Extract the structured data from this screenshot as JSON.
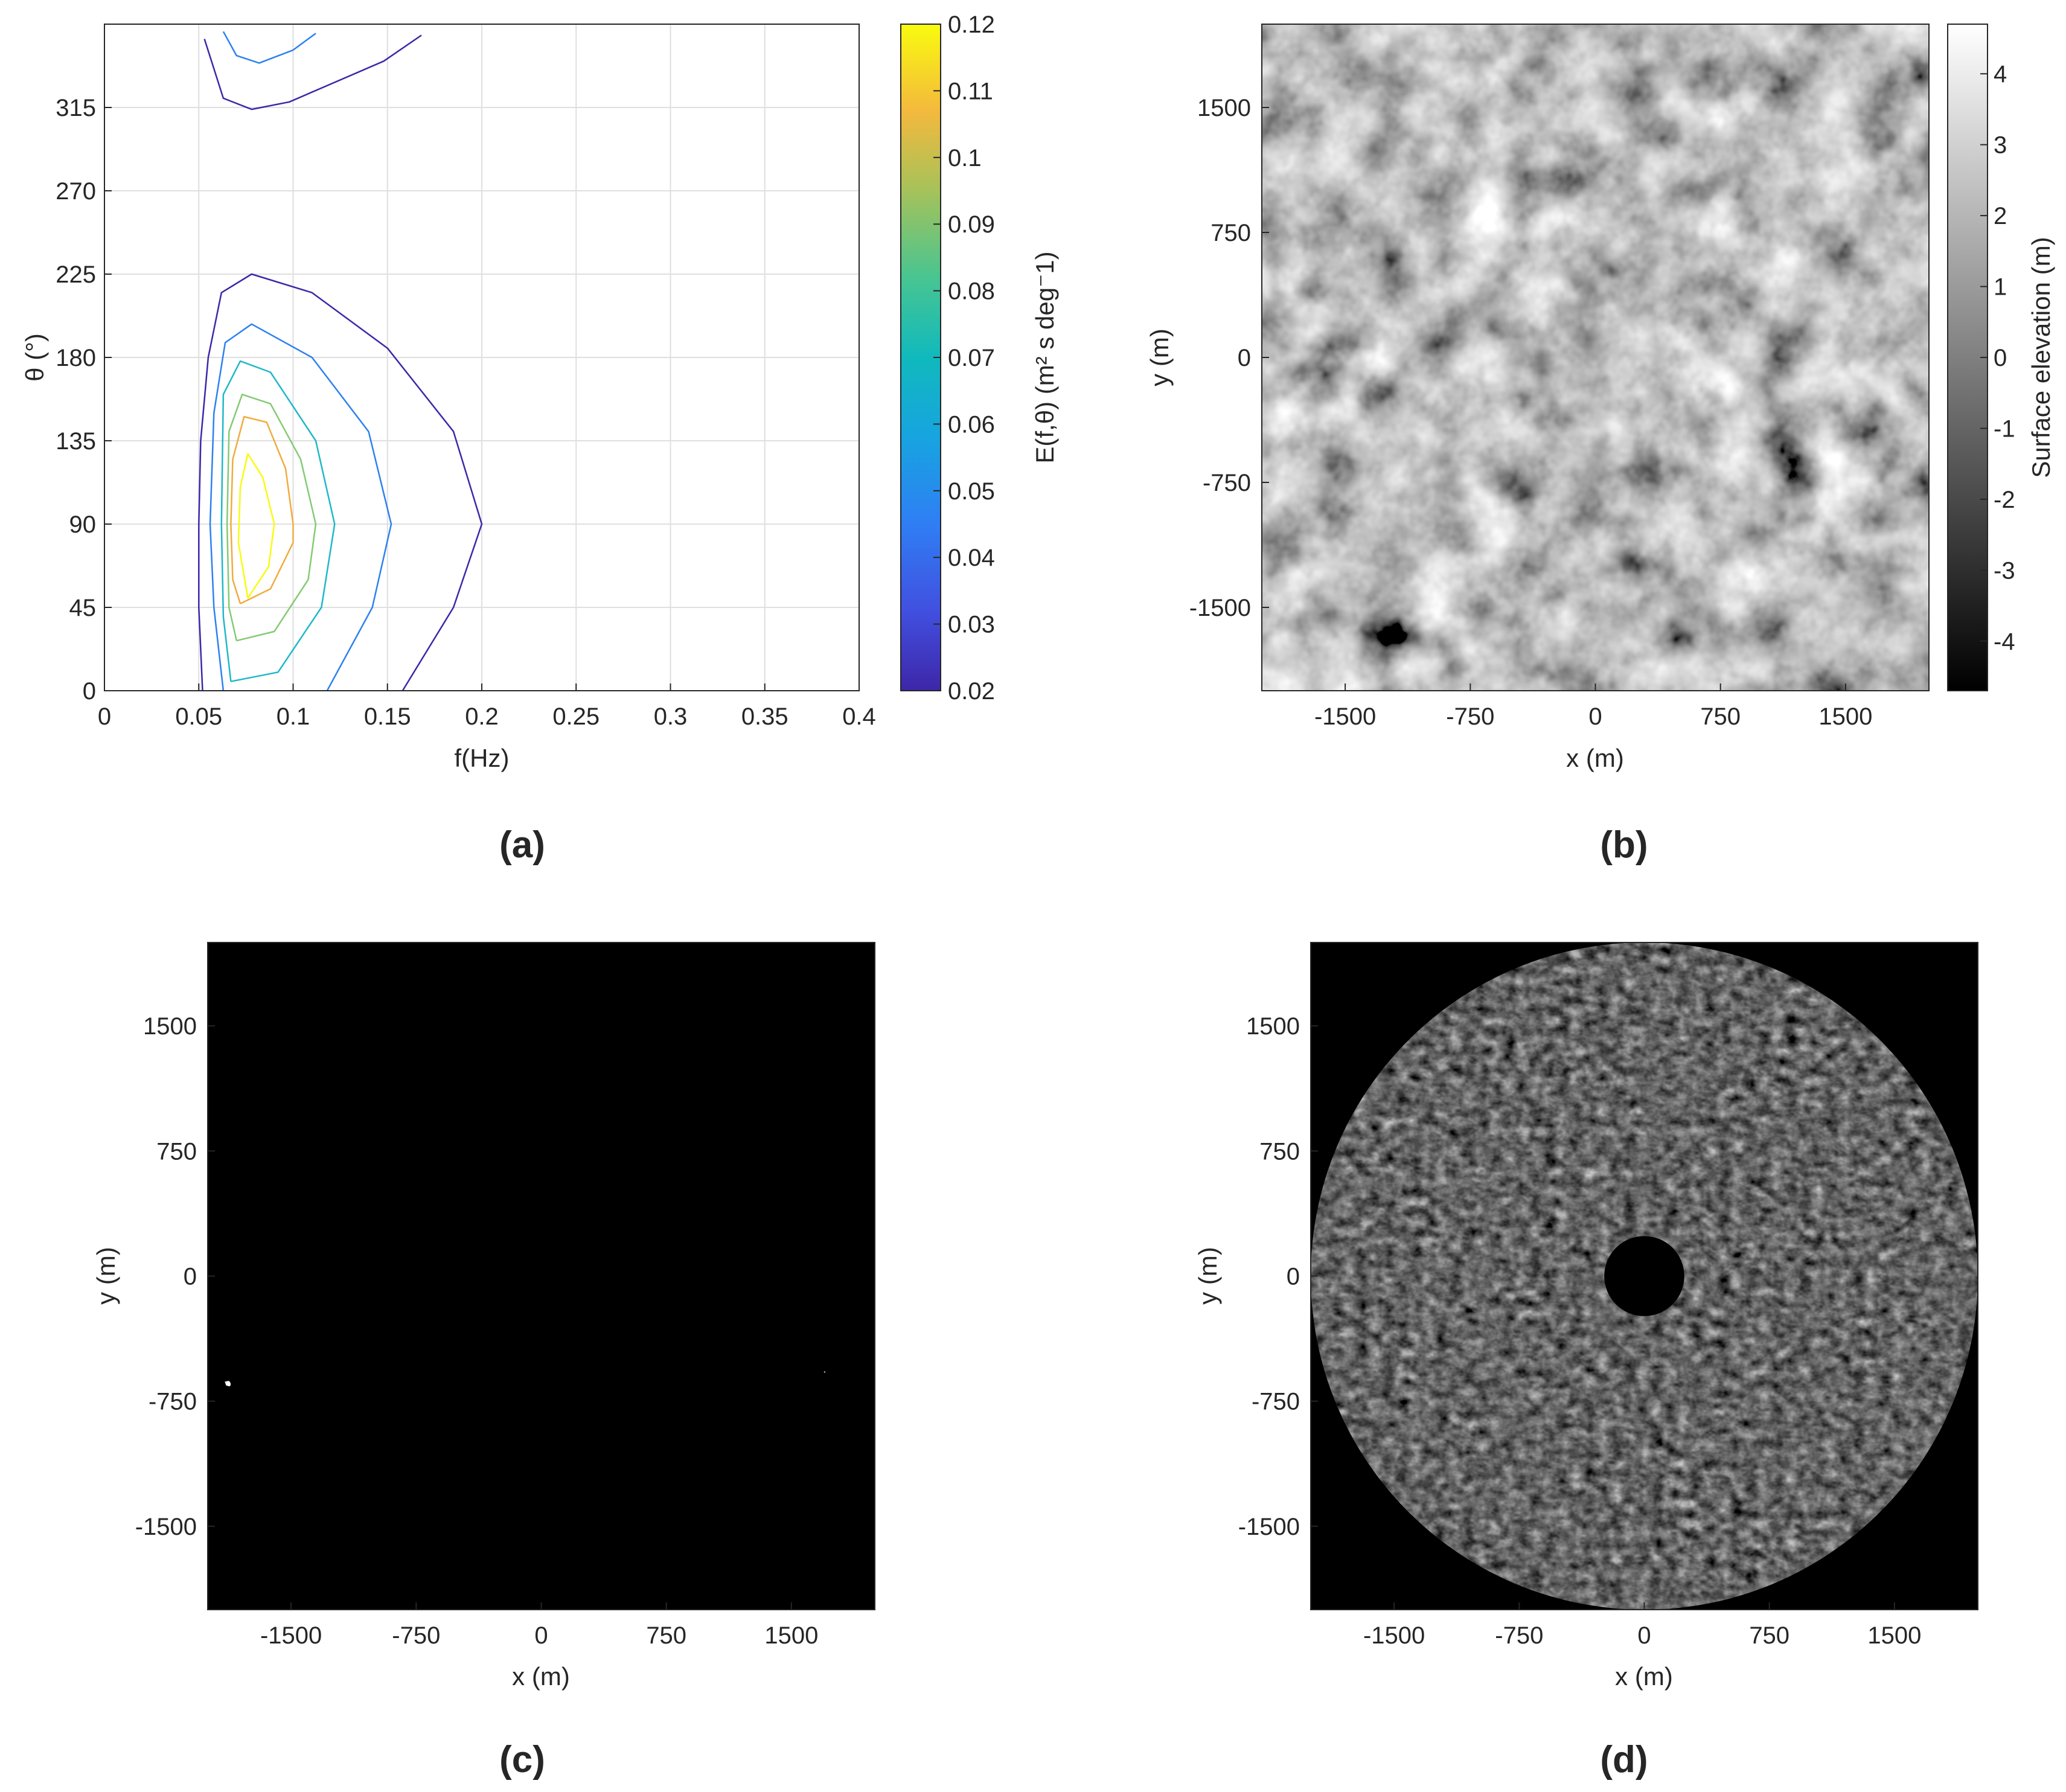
{
  "panels": {
    "a": {
      "label": "(a)"
    },
    "b": {
      "label": "(b)"
    },
    "c": {
      "label": "(c)"
    },
    "d": {
      "label": "(d)"
    }
  },
  "chart_data": [
    {
      "panel": "(a)",
      "type": "contour",
      "xlabel": "f(Hz)",
      "ylabel": "θ (°)",
      "xlim": [
        0,
        0.4
      ],
      "ylim": [
        0,
        360
      ],
      "xticks": [
        "0",
        "0.05",
        "0.1",
        "0.15",
        "0.2",
        "0.25",
        "0.3",
        "0.35",
        "0.4"
      ],
      "yticks": [
        "0",
        "45",
        "90",
        "135",
        "180",
        "225",
        "270",
        "315"
      ],
      "grid": true,
      "colorbar": {
        "label": "E(f,θ) (m² s deg⁻1)",
        "colormap": "parula",
        "range": [
          0.02,
          0.12
        ],
        "ticks": [
          "0.02",
          "0.03",
          "0.04",
          "0.05",
          "0.06",
          "0.07",
          "0.08",
          "0.09",
          "0.1",
          "0.11",
          "0.12"
        ]
      },
      "contours": [
        {
          "level": 0.02,
          "color": "#3e26a8",
          "points": [
            [
              0.158,
              0
            ],
            [
              0.185,
              45
            ],
            [
              0.2,
              90
            ],
            [
              0.185,
              140
            ],
            [
              0.15,
              185
            ],
            [
              0.11,
              215
            ],
            [
              0.078,
              225
            ],
            [
              0.062,
              215
            ],
            [
              0.055,
              180
            ],
            [
              0.051,
              135
            ],
            [
              0.05,
              90
            ],
            [
              0.05,
              45
            ],
            [
              0.052,
              0
            ]
          ]
        },
        {
          "level": 0.02,
          "color": "#3e26a8",
          "points": [
            [
              0.053,
              352
            ],
            [
              0.063,
              320
            ],
            [
              0.078,
              314
            ],
            [
              0.098,
              318
            ],
            [
              0.148,
              340
            ],
            [
              0.168,
              354
            ]
          ]
        },
        {
          "level": 0.04,
          "color": "#2c81f0",
          "points": [
            [
              0.118,
              0
            ],
            [
              0.142,
              45
            ],
            [
              0.152,
              90
            ],
            [
              0.14,
              140
            ],
            [
              0.11,
              180
            ],
            [
              0.078,
              198
            ],
            [
              0.064,
              188
            ],
            [
              0.058,
              150
            ],
            [
              0.056,
              90
            ],
            [
              0.058,
              45
            ],
            [
              0.063,
              0
            ]
          ]
        },
        {
          "level": 0.04,
          "color": "#2c81f0",
          "points": [
            [
              0.063,
              356
            ],
            [
              0.07,
              343
            ],
            [
              0.082,
              339
            ],
            [
              0.1,
              346
            ],
            [
              0.112,
              355
            ]
          ]
        },
        {
          "level": 0.06,
          "color": "#1eb8c8",
          "points": [
            [
              0.067,
              5
            ],
            [
              0.092,
              10
            ],
            [
              0.115,
              45
            ],
            [
              0.122,
              90
            ],
            [
              0.112,
              135
            ],
            [
              0.088,
              172
            ],
            [
              0.072,
              178
            ],
            [
              0.063,
              160
            ],
            [
              0.062,
              90
            ],
            [
              0.063,
              40
            ],
            [
              0.067,
              5
            ]
          ]
        },
        {
          "level": 0.08,
          "color": "#83ca72",
          "points": [
            [
              0.07,
              27
            ],
            [
              0.09,
              32
            ],
            [
              0.108,
              60
            ],
            [
              0.112,
              90
            ],
            [
              0.104,
              125
            ],
            [
              0.088,
              155
            ],
            [
              0.073,
              160
            ],
            [
              0.066,
              140
            ],
            [
              0.065,
              90
            ],
            [
              0.066,
              45
            ],
            [
              0.07,
              27
            ]
          ]
        },
        {
          "level": 0.1,
          "color": "#f0ab3d",
          "points": [
            [
              0.072,
              47
            ],
            [
              0.088,
              55
            ],
            [
              0.1,
              80
            ],
            [
              0.1,
              90
            ],
            [
              0.096,
              120
            ],
            [
              0.086,
              145
            ],
            [
              0.074,
              148
            ],
            [
              0.068,
              125
            ],
            [
              0.067,
              90
            ],
            [
              0.068,
              60
            ],
            [
              0.072,
              47
            ]
          ]
        },
        {
          "level": 0.12,
          "color": "#f9fb0e",
          "points": [
            [
              0.076,
              50
            ],
            [
              0.087,
              67
            ],
            [
              0.09,
              90
            ],
            [
              0.084,
              115
            ],
            [
              0.076,
              128
            ],
            [
              0.072,
              110
            ],
            [
              0.071,
              80
            ],
            [
              0.076,
              50
            ]
          ]
        }
      ]
    },
    {
      "panel": "(b)",
      "type": "heatmap",
      "xlabel": "x (m)",
      "ylabel": "y (m)",
      "xlim": [
        -2000,
        2000
      ],
      "ylim": [
        -2000,
        2000
      ],
      "xticks": [
        "-1500",
        "-750",
        "0",
        "750",
        "1500"
      ],
      "yticks": [
        "-1500",
        "-750",
        "0",
        "750",
        "1500"
      ],
      "colormap": "gray",
      "colorbar": {
        "label": "Surface elevation (m)",
        "range": [
          -4.7,
          4.7
        ],
        "ticks": [
          "-4",
          "-3",
          "-2",
          "-1",
          "0",
          "1",
          "2",
          "3",
          "4"
        ]
      }
    },
    {
      "panel": "(c)",
      "type": "heatmap",
      "description": "binary radar shadowing mask",
      "xlabel": "x (m)",
      "ylabel": "y (m)",
      "xlim": [
        -2000,
        2000
      ],
      "ylim": [
        -2000,
        2000
      ],
      "xticks": [
        "-1500",
        "-750",
        "0",
        "750",
        "1500"
      ],
      "yticks": [
        "-1500",
        "-750",
        "0",
        "750",
        "1500"
      ],
      "outer_radius_m": 2000,
      "inner_radius_m": 240,
      "colors": {
        "background": "#000000",
        "foreground": "#ffffff"
      }
    },
    {
      "panel": "(d)",
      "type": "heatmap",
      "description": "simulated radar backscatter image",
      "xlabel": "x (m)",
      "ylabel": "y (m)",
      "xlim": [
        -2000,
        2000
      ],
      "ylim": [
        -2000,
        2000
      ],
      "xticks": [
        "-1500",
        "-750",
        "0",
        "750",
        "1500"
      ],
      "yticks": [
        "-1500",
        "-750",
        "0",
        "750",
        "1500"
      ],
      "outer_radius_m": 2000,
      "inner_radius_m": 240,
      "colors": {
        "background": "#000000"
      }
    }
  ]
}
